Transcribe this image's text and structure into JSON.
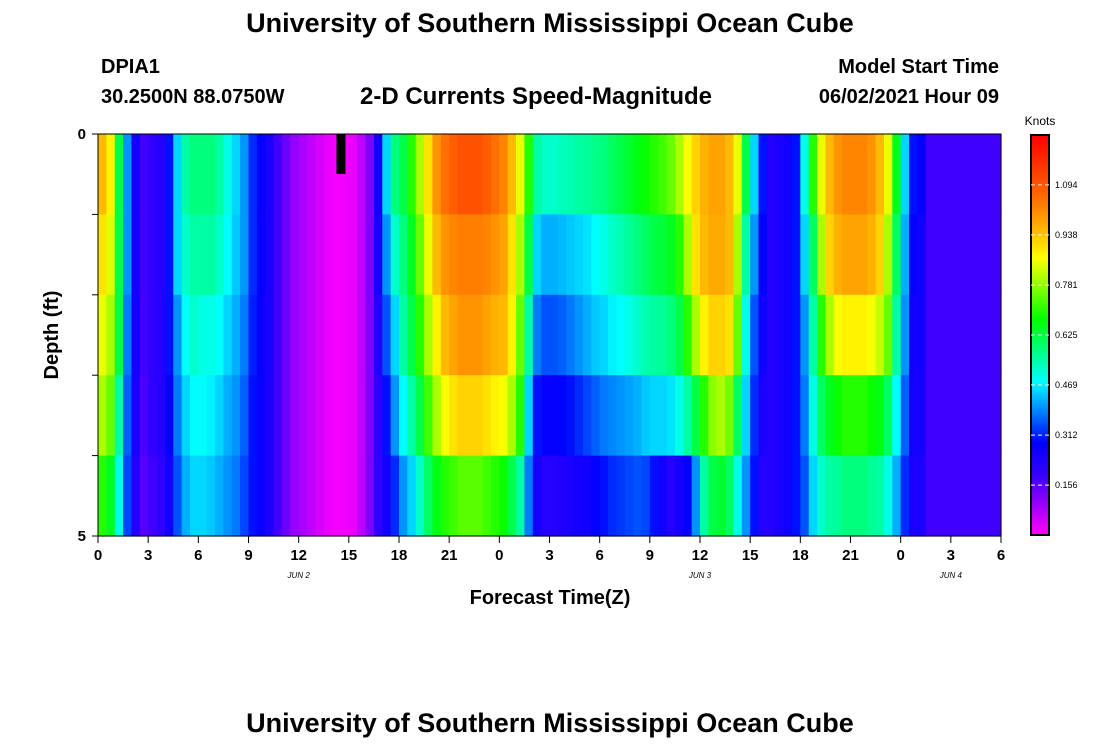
{
  "header": {
    "title": "University of Southern Mississippi Ocean Cube",
    "station": "DPIA1",
    "coords": "30.2500N  88.0750W",
    "subtitle": "2-D Currents Speed-Magnitude",
    "model_start_label": "Model Start Time",
    "model_start_time": "06/02/2021 Hour 09"
  },
  "footer": {
    "title": "University of Southern Mississippi Ocean Cube"
  },
  "chart_data": {
    "type": "heatmap",
    "title": "2-D Currents Speed-Magnitude",
    "xlabel": "Forecast Time(Z)",
    "ylabel": "Depth (ft)",
    "x_start_hour": 0,
    "x_end_hour": 54,
    "x_ticks": [
      "0",
      "3",
      "6",
      "9",
      "12",
      "15",
      "18",
      "21",
      "0",
      "3",
      "6",
      "9",
      "12",
      "15",
      "18",
      "21",
      "0",
      "3",
      "6"
    ],
    "date_labels": [
      {
        "label": "JUN 2",
        "hour": 12
      },
      {
        "label": "JUN 3",
        "hour": 36
      },
      {
        "label": "JUN 4",
        "hour": 51
      }
    ],
    "y_ticks": [
      "0",
      "5"
    ],
    "ylim": [
      0,
      5
    ],
    "depth_layers": 5,
    "model_start_hour": 14.5,
    "colorbar": {
      "title": "Knots",
      "min": 0,
      "max": 1.25,
      "ticks": [
        "1.094",
        "0.938",
        "0.781",
        "0.625",
        "0.469",
        "0.312",
        "0.156"
      ],
      "colors": [
        "#ff00ff",
        "#9a00ff",
        "#3300ff",
        "#0000ff",
        "#0080ff",
        "#00ffff",
        "#00ff80",
        "#00ff00",
        "#80ff00",
        "#ffff00",
        "#ffb000",
        "#ff6a00",
        "#ff3300",
        "#ff0000"
      ]
    },
    "columns": [
      {
        "hour": 0.0,
        "speeds": [
          0.95,
          0.9,
          0.85,
          0.8,
          0.7
        ]
      },
      {
        "hour": 0.5,
        "speeds": [
          0.88,
          0.84,
          0.8,
          0.75,
          0.65
        ]
      },
      {
        "hour": 1.0,
        "speeds": [
          0.62,
          0.62,
          0.62,
          0.55,
          0.5
        ]
      },
      {
        "hour": 1.5,
        "speeds": [
          0.4,
          0.4,
          0.38,
          0.36,
          0.34
        ]
      },
      {
        "hour": 2.0,
        "speeds": [
          0.25,
          0.25,
          0.25,
          0.24,
          0.22
        ]
      },
      {
        "hour": 2.5,
        "speeds": [
          0.18,
          0.18,
          0.18,
          0.17,
          0.16
        ]
      },
      {
        "hour": 3.0,
        "speeds": [
          0.2,
          0.2,
          0.2,
          0.2,
          0.18
        ]
      },
      {
        "hour": 3.5,
        "speeds": [
          0.22,
          0.22,
          0.22,
          0.22,
          0.2
        ]
      },
      {
        "hour": 4.0,
        "speeds": [
          0.3,
          0.3,
          0.3,
          0.28,
          0.26
        ]
      },
      {
        "hour": 4.5,
        "speeds": [
          0.45,
          0.45,
          0.4,
          0.38,
          0.35
        ]
      },
      {
        "hour": 5.0,
        "speeds": [
          0.55,
          0.52,
          0.48,
          0.45,
          0.42
        ]
      },
      {
        "hour": 5.5,
        "speeds": [
          0.58,
          0.55,
          0.52,
          0.48,
          0.45
        ]
      },
      {
        "hour": 6.0,
        "speeds": [
          0.58,
          0.55,
          0.5,
          0.48,
          0.45
        ]
      },
      {
        "hour": 6.5,
        "speeds": [
          0.58,
          0.55,
          0.5,
          0.47,
          0.44
        ]
      },
      {
        "hour": 7.0,
        "speeds": [
          0.55,
          0.52,
          0.48,
          0.45,
          0.42
        ]
      },
      {
        "hour": 7.5,
        "speeds": [
          0.5,
          0.48,
          0.45,
          0.42,
          0.4
        ]
      },
      {
        "hour": 8.0,
        "speeds": [
          0.45,
          0.44,
          0.42,
          0.4,
          0.38
        ]
      },
      {
        "hour": 8.5,
        "speeds": [
          0.4,
          0.4,
          0.38,
          0.36,
          0.34
        ]
      },
      {
        "hour": 9.0,
        "speeds": [
          0.32,
          0.32,
          0.31,
          0.3,
          0.3
        ]
      },
      {
        "hour": 9.5,
        "speeds": [
          0.28,
          0.28,
          0.27,
          0.27,
          0.27
        ]
      },
      {
        "hour": 10.0,
        "speeds": [
          0.24,
          0.24,
          0.24,
          0.24,
          0.24
        ]
      },
      {
        "hour": 10.5,
        "speeds": [
          0.18,
          0.18,
          0.18,
          0.18,
          0.18
        ]
      },
      {
        "hour": 11.0,
        "speeds": [
          0.14,
          0.14,
          0.14,
          0.14,
          0.14
        ]
      },
      {
        "hour": 11.5,
        "speeds": [
          0.1,
          0.1,
          0.1,
          0.1,
          0.1
        ]
      },
      {
        "hour": 12.0,
        "speeds": [
          0.08,
          0.08,
          0.08,
          0.08,
          0.08
        ]
      },
      {
        "hour": 12.5,
        "speeds": [
          0.06,
          0.06,
          0.06,
          0.06,
          0.06
        ]
      },
      {
        "hour": 13.0,
        "speeds": [
          0.04,
          0.04,
          0.04,
          0.04,
          0.04
        ]
      },
      {
        "hour": 13.5,
        "speeds": [
          0.02,
          0.02,
          0.02,
          0.02,
          0.02
        ]
      },
      {
        "hour": 14.0,
        "speeds": [
          0.01,
          0.01,
          0.01,
          0.01,
          0.01
        ]
      },
      {
        "hour": 14.5,
        "speeds": [
          0.01,
          0.01,
          0.01,
          0.01,
          0.01
        ]
      },
      {
        "hour": 15.0,
        "speeds": [
          0.02,
          0.02,
          0.02,
          0.02,
          0.02
        ]
      },
      {
        "hour": 15.5,
        "speeds": [
          0.06,
          0.06,
          0.06,
          0.06,
          0.06
        ]
      },
      {
        "hour": 16.0,
        "speeds": [
          0.12,
          0.12,
          0.12,
          0.12,
          0.12
        ]
      },
      {
        "hour": 16.5,
        "speeds": [
          0.25,
          0.24,
          0.22,
          0.2,
          0.2
        ]
      },
      {
        "hour": 17.0,
        "speeds": [
          0.45,
          0.4,
          0.35,
          0.3,
          0.25
        ]
      },
      {
        "hour": 17.5,
        "speeds": [
          0.58,
          0.52,
          0.45,
          0.4,
          0.32
        ]
      },
      {
        "hour": 18.0,
        "speeds": [
          0.62,
          0.58,
          0.55,
          0.48,
          0.4
        ]
      },
      {
        "hour": 18.5,
        "speeds": [
          0.7,
          0.65,
          0.62,
          0.55,
          0.45
        ]
      },
      {
        "hour": 19.0,
        "speeds": [
          0.8,
          0.75,
          0.7,
          0.62,
          0.52
        ]
      },
      {
        "hour": 19.5,
        "speeds": [
          0.9,
          0.85,
          0.8,
          0.72,
          0.6
        ]
      },
      {
        "hour": 20.0,
        "speeds": [
          1.0,
          0.95,
          0.88,
          0.8,
          0.66
        ]
      },
      {
        "hour": 20.5,
        "speeds": [
          1.05,
          1.0,
          0.95,
          0.86,
          0.7
        ]
      },
      {
        "hour": 21.0,
        "speeds": [
          1.08,
          1.02,
          0.98,
          0.9,
          0.72
        ]
      },
      {
        "hour": 21.5,
        "speeds": [
          1.1,
          1.03,
          1.0,
          0.92,
          0.74
        ]
      },
      {
        "hour": 22.0,
        "speeds": [
          1.1,
          1.03,
          1.0,
          0.92,
          0.74
        ]
      },
      {
        "hour": 22.5,
        "speeds": [
          1.1,
          1.03,
          1.0,
          0.92,
          0.74
        ]
      },
      {
        "hour": 23.0,
        "speeds": [
          1.08,
          1.02,
          0.98,
          0.9,
          0.72
        ]
      },
      {
        "hour": 23.5,
        "speeds": [
          1.05,
          1.0,
          0.96,
          0.88,
          0.7
        ]
      },
      {
        "hour": 24.0,
        "speeds": [
          1.02,
          0.98,
          0.95,
          0.86,
          0.68
        ]
      },
      {
        "hour": 24.5,
        "speeds": [
          0.95,
          0.9,
          0.88,
          0.8,
          0.62
        ]
      },
      {
        "hour": 25.0,
        "speeds": [
          0.85,
          0.8,
          0.75,
          0.7,
          0.55
        ]
      },
      {
        "hour": 25.5,
        "speeds": [
          0.7,
          0.62,
          0.55,
          0.45,
          0.38
        ]
      },
      {
        "hour": 26.0,
        "speeds": [
          0.55,
          0.45,
          0.38,
          0.3,
          0.25
        ]
      },
      {
        "hour": 26.5,
        "speeds": [
          0.52,
          0.42,
          0.35,
          0.28,
          0.22
        ]
      },
      {
        "hour": 27.0,
        "speeds": [
          0.52,
          0.42,
          0.35,
          0.28,
          0.22
        ]
      },
      {
        "hour": 27.5,
        "speeds": [
          0.53,
          0.43,
          0.36,
          0.29,
          0.23
        ]
      },
      {
        "hour": 28.0,
        "speeds": [
          0.54,
          0.44,
          0.38,
          0.3,
          0.24
        ]
      },
      {
        "hour": 28.5,
        "speeds": [
          0.55,
          0.45,
          0.4,
          0.32,
          0.25
        ]
      },
      {
        "hour": 29.0,
        "speeds": [
          0.56,
          0.46,
          0.42,
          0.34,
          0.26
        ]
      },
      {
        "hour": 29.5,
        "speeds": [
          0.57,
          0.48,
          0.44,
          0.36,
          0.28
        ]
      },
      {
        "hour": 30.0,
        "speeds": [
          0.58,
          0.5,
          0.45,
          0.38,
          0.3
        ]
      },
      {
        "hour": 30.5,
        "speeds": [
          0.6,
          0.52,
          0.47,
          0.39,
          0.32
        ]
      },
      {
        "hour": 31.0,
        "speeds": [
          0.62,
          0.54,
          0.48,
          0.4,
          0.33
        ]
      },
      {
        "hour": 31.5,
        "speeds": [
          0.64,
          0.56,
          0.5,
          0.41,
          0.34
        ]
      },
      {
        "hour": 32.0,
        "speeds": [
          0.66,
          0.58,
          0.52,
          0.42,
          0.35
        ]
      },
      {
        "hour": 32.5,
        "speeds": [
          0.68,
          0.6,
          0.54,
          0.44,
          0.34
        ]
      },
      {
        "hour": 33.0,
        "speeds": [
          0.7,
          0.62,
          0.55,
          0.45,
          0.3
        ]
      },
      {
        "hour": 33.5,
        "speeds": [
          0.72,
          0.63,
          0.56,
          0.45,
          0.26
        ]
      },
      {
        "hour": 34.0,
        "speeds": [
          0.75,
          0.65,
          0.58,
          0.46,
          0.22
        ]
      },
      {
        "hour": 34.5,
        "speeds": [
          0.8,
          0.7,
          0.62,
          0.5,
          0.25
        ]
      },
      {
        "hour": 35.0,
        "speeds": [
          0.86,
          0.8,
          0.7,
          0.55,
          0.28
        ]
      },
      {
        "hour": 35.5,
        "speeds": [
          0.92,
          0.9,
          0.8,
          0.62,
          0.4
        ]
      },
      {
        "hour": 36.0,
        "speeds": [
          0.96,
          0.95,
          0.88,
          0.7,
          0.55
        ]
      },
      {
        "hour": 36.5,
        "speeds": [
          0.98,
          0.97,
          0.92,
          0.78,
          0.62
        ]
      },
      {
        "hour": 37.0,
        "speeds": [
          0.98,
          0.97,
          0.92,
          0.8,
          0.64
        ]
      },
      {
        "hour": 37.5,
        "speeds": [
          0.95,
          0.95,
          0.9,
          0.76,
          0.6
        ]
      },
      {
        "hour": 38.0,
        "speeds": [
          0.85,
          0.8,
          0.75,
          0.6,
          0.5
        ]
      },
      {
        "hour": 38.5,
        "speeds": [
          0.62,
          0.55,
          0.5,
          0.45,
          0.4
        ]
      },
      {
        "hour": 39.0,
        "speeds": [
          0.45,
          0.4,
          0.35,
          0.32,
          0.3
        ]
      },
      {
        "hour": 39.5,
        "speeds": [
          0.3,
          0.28,
          0.26,
          0.24,
          0.22
        ]
      },
      {
        "hour": 40.0,
        "speeds": [
          0.22,
          0.22,
          0.22,
          0.22,
          0.22
        ]
      },
      {
        "hour": 40.5,
        "speeds": [
          0.24,
          0.24,
          0.24,
          0.24,
          0.24
        ]
      },
      {
        "hour": 41.0,
        "speeds": [
          0.26,
          0.26,
          0.26,
          0.26,
          0.26
        ]
      },
      {
        "hour": 41.5,
        "speeds": [
          0.3,
          0.3,
          0.3,
          0.3,
          0.3
        ]
      },
      {
        "hour": 42.0,
        "speeds": [
          0.5,
          0.45,
          0.4,
          0.38,
          0.35
        ]
      },
      {
        "hour": 42.5,
        "speeds": [
          0.7,
          0.6,
          0.55,
          0.5,
          0.45
        ]
      },
      {
        "hour": 43.0,
        "speeds": [
          0.85,
          0.8,
          0.7,
          0.6,
          0.52
        ]
      },
      {
        "hour": 43.5,
        "speeds": [
          0.95,
          0.92,
          0.8,
          0.65,
          0.55
        ]
      },
      {
        "hour": 44.0,
        "speeds": [
          1.0,
          0.96,
          0.86,
          0.68,
          0.56
        ]
      },
      {
        "hour": 44.5,
        "speeds": [
          1.02,
          0.98,
          0.88,
          0.7,
          0.58
        ]
      },
      {
        "hour": 45.0,
        "speeds": [
          1.02,
          0.98,
          0.88,
          0.7,
          0.58
        ]
      },
      {
        "hour": 45.5,
        "speeds": [
          1.02,
          0.98,
          0.88,
          0.7,
          0.58
        ]
      },
      {
        "hour": 46.0,
        "speeds": [
          1.0,
          0.96,
          0.86,
          0.68,
          0.56
        ]
      },
      {
        "hour": 46.5,
        "speeds": [
          0.95,
          0.92,
          0.82,
          0.66,
          0.55
        ]
      },
      {
        "hour": 47.0,
        "speeds": [
          0.85,
          0.8,
          0.75,
          0.6,
          0.5
        ]
      },
      {
        "hour": 47.5,
        "speeds": [
          0.65,
          0.6,
          0.55,
          0.48,
          0.42
        ]
      },
      {
        "hour": 48.0,
        "speeds": [
          0.45,
          0.42,
          0.4,
          0.36,
          0.32
        ]
      },
      {
        "hour": 48.5,
        "speeds": [
          0.3,
          0.28,
          0.26,
          0.25,
          0.24
        ]
      },
      {
        "hour": 49.0,
        "speeds": [
          0.28,
          0.26,
          0.25,
          0.25,
          0.24
        ]
      },
      {
        "hour": 49.5,
        "speeds": [
          0.18,
          0.18,
          0.18,
          0.18,
          0.18
        ]
      }
    ]
  }
}
